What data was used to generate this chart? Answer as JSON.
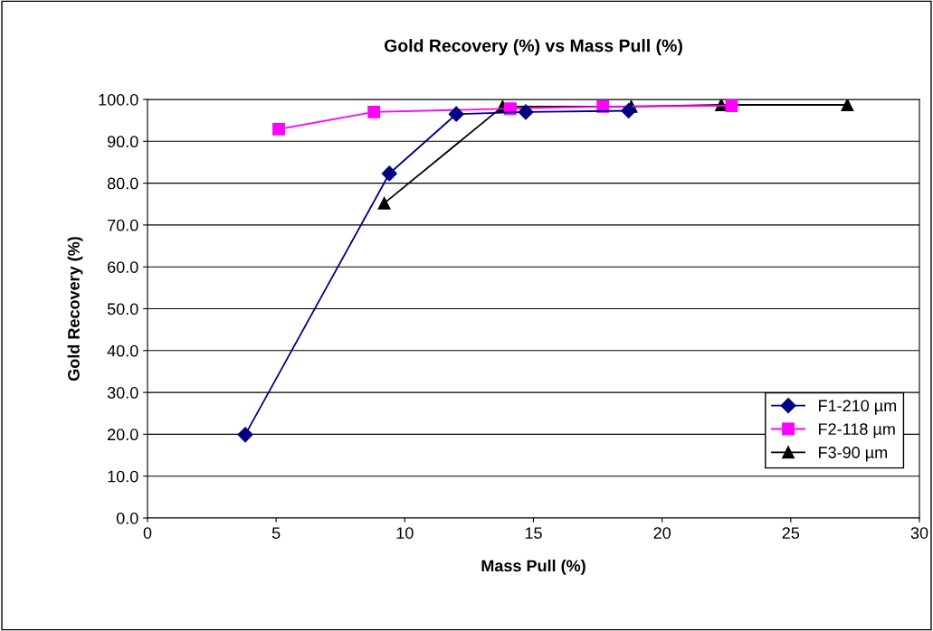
{
  "chart_data": {
    "type": "line",
    "title": "Gold Recovery (%) vs Mass Pull (%)",
    "xlabel": "Mass Pull (%)",
    "ylabel": "Gold Recovery (%)",
    "series": [
      {
        "name": "F1-210 µm",
        "color": "#000080",
        "marker": "diamond",
        "x": [
          3.8,
          9.4,
          12.0,
          14.7,
          18.7
        ],
        "values": [
          19.9,
          82.3,
          96.5,
          97.0,
          97.3
        ]
      },
      {
        "name": "F2-118 µm",
        "color": "#ff00ff",
        "marker": "square",
        "x": [
          5.1,
          8.8,
          14.1,
          17.7,
          22.7
        ],
        "values": [
          92.9,
          97.0,
          97.8,
          98.3,
          98.5
        ]
      },
      {
        "name": "F3-90 µm",
        "color": "#000000",
        "marker": "triangle",
        "x": [
          9.2,
          13.8,
          18.8,
          22.3,
          27.2
        ],
        "values": [
          75.2,
          98.3,
          98.3,
          98.7,
          98.7
        ]
      }
    ],
    "xlim": [
      0,
      30
    ],
    "xticks": [
      0,
      5,
      10,
      15,
      20,
      25,
      30
    ],
    "ylim": [
      0,
      100
    ],
    "yticks": [
      {
        "value": 0,
        "label": "0.0"
      },
      {
        "value": 10,
        "label": "10.0"
      },
      {
        "value": 20,
        "label": "20.0"
      },
      {
        "value": 30,
        "label": "30.0"
      },
      {
        "value": 40,
        "label": "40.0"
      },
      {
        "value": 50,
        "label": "50.0"
      },
      {
        "value": 60,
        "label": "60.0"
      },
      {
        "value": 70,
        "label": "70.0"
      },
      {
        "value": 80,
        "label": "80.0"
      },
      {
        "value": 90,
        "label": "90.0"
      },
      {
        "value": 100,
        "label": "100.0"
      }
    ],
    "grid": "y",
    "legend": "bottom right"
  }
}
